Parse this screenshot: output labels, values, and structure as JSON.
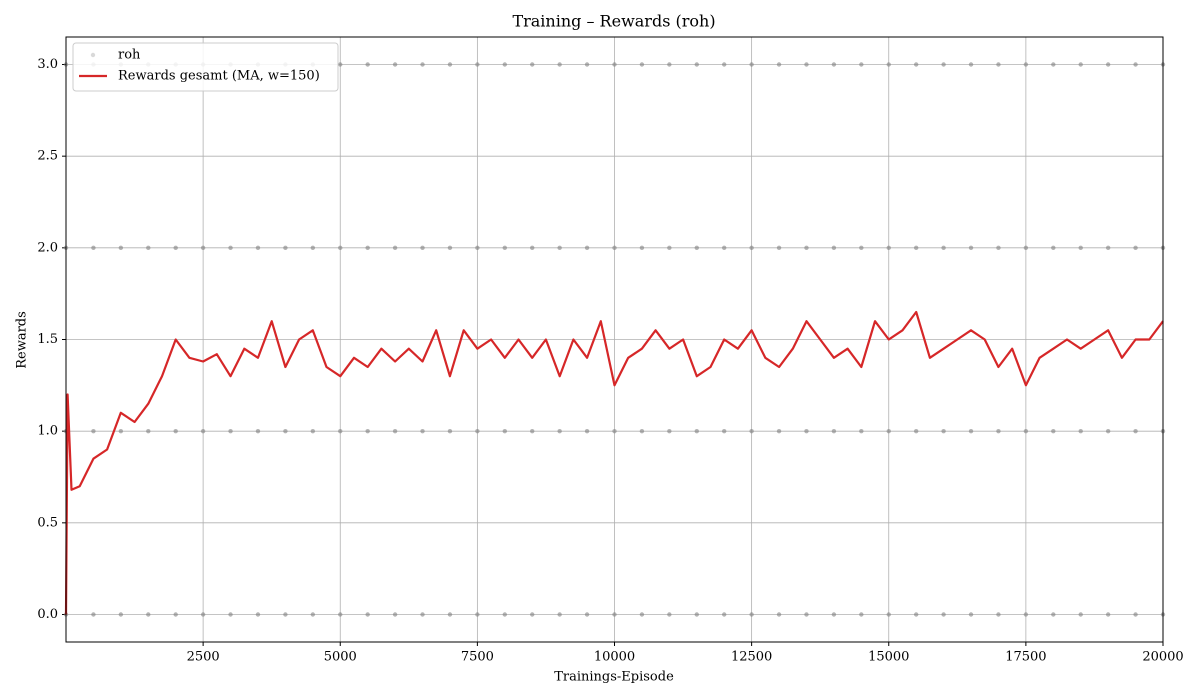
{
  "chart_data": {
    "type": "scatter_line",
    "title": "Training – Rewards (roh)",
    "xlabel": "Trainings-Episode",
    "ylabel": "Rewards",
    "xlim": [
      0,
      20000
    ],
    "ylim": [
      -0.15,
      3.15
    ],
    "xticks": [
      2500,
      5000,
      7500,
      10000,
      12500,
      15000,
      17500,
      20000
    ],
    "yticks": [
      {
        "value": 0,
        "label": "0.0"
      },
      0.5,
      {
        "value": 1,
        "label": "1.0"
      },
      1.5,
      {
        "value": 2,
        "label": "2.0"
      },
      2.5,
      {
        "value": 3,
        "label": "3.0"
      }
    ],
    "grid": true,
    "legend": "upper left",
    "series": [
      {
        "name": "roh",
        "color": "#808080",
        "kind": "scatter",
        "x": [
          0,
          500,
          1000,
          1500,
          2000,
          2500,
          3000,
          3500,
          4000,
          4500,
          5000,
          5500,
          6000,
          6500,
          7000,
          7500,
          8000,
          8500,
          9000,
          9500,
          10000,
          10500,
          11000,
          11500,
          12000,
          12500,
          13000,
          13500,
          14000,
          14500,
          15000,
          15500,
          16000,
          16500,
          17000,
          17500,
          18000,
          18500,
          19000,
          19500,
          20000,
          0,
          500,
          1000,
          1500,
          2000,
          2500,
          3000,
          3500,
          4000,
          4500,
          5000,
          5500,
          6000,
          6500,
          7000,
          7500,
          8000,
          8500,
          9000,
          9500,
          10000,
          10500,
          11000,
          11500,
          12000,
          12500,
          13000,
          13500,
          14000,
          14500,
          15000,
          15500,
          16000,
          16500,
          17000,
          17500,
          18000,
          18500,
          19000,
          19500,
          20000,
          0,
          500,
          1000,
          1500,
          2000,
          2500,
          3000,
          3500,
          4000,
          4500,
          5000,
          5500,
          6000,
          6500,
          7000,
          7500,
          8000,
          8500,
          9000,
          9500,
          10000,
          10500,
          11000,
          11500,
          12000,
          12500,
          13000,
          13500,
          14000,
          14500,
          15000,
          15500,
          16000,
          16500,
          17000,
          17500,
          18000,
          18500,
          19000,
          19500,
          20000,
          0,
          500,
          1000,
          1500,
          2000,
          2500,
          3000,
          3500,
          4000,
          4500,
          5000,
          5500,
          6000,
          6500,
          7000,
          7500,
          8000,
          8500,
          9000,
          9500,
          10000,
          10500,
          11000,
          11500,
          12000,
          12500,
          13000,
          13500,
          14000,
          14500,
          15000,
          15500,
          16000,
          16500,
          17000,
          17500,
          18000,
          18500,
          19000,
          19500,
          20000
        ],
        "values": [
          0,
          0,
          0,
          0,
          0,
          0,
          0,
          0,
          0,
          0,
          0,
          0,
          0,
          0,
          0,
          0,
          0,
          0,
          0,
          0,
          0,
          0,
          0,
          0,
          0,
          0,
          0,
          0,
          0,
          0,
          0,
          0,
          0,
          0,
          0,
          0,
          0,
          0,
          0,
          0,
          0,
          1,
          1,
          1,
          1,
          1,
          1,
          1,
          1,
          1,
          1,
          1,
          1,
          1,
          1,
          1,
          1,
          1,
          1,
          1,
          1,
          1,
          1,
          1,
          1,
          1,
          1,
          1,
          1,
          1,
          1,
          1,
          1,
          1,
          1,
          1,
          1,
          1,
          1,
          1,
          1,
          1,
          2,
          2,
          2,
          2,
          2,
          2,
          2,
          2,
          2,
          2,
          2,
          2,
          2,
          2,
          2,
          2,
          2,
          2,
          2,
          2,
          2,
          2,
          2,
          2,
          2,
          2,
          2,
          2,
          2,
          2,
          2,
          2,
          2,
          2,
          2,
          2,
          2,
          2,
          2,
          2,
          2,
          3,
          3,
          3,
          3,
          3,
          3,
          3,
          3,
          3,
          3,
          3,
          3,
          3,
          3,
          3,
          3,
          3,
          3,
          3,
          3,
          3,
          3,
          3,
          3,
          3,
          3,
          3,
          3,
          3,
          3,
          3,
          3,
          3,
          3,
          3,
          3,
          3,
          3,
          3,
          3,
          3
        ]
      },
      {
        "name": "Rewards gesamt (MA, w=150)",
        "color": "#d62728",
        "kind": "line",
        "x": [
          0,
          30,
          100,
          250,
          500,
          750,
          1000,
          1250,
          1500,
          1750,
          2000,
          2250,
          2500,
          2750,
          3000,
          3250,
          3500,
          3750,
          4000,
          4250,
          4500,
          4750,
          5000,
          5250,
          5500,
          5750,
          6000,
          6250,
          6500,
          6750,
          7000,
          7250,
          7500,
          7750,
          8000,
          8250,
          8500,
          8750,
          9000,
          9250,
          9500,
          9750,
          10000,
          10250,
          10500,
          10750,
          11000,
          11250,
          11500,
          11750,
          12000,
          12250,
          12500,
          12750,
          13000,
          13250,
          13500,
          13750,
          14000,
          14250,
          14500,
          14750,
          15000,
          15250,
          15500,
          15750,
          16000,
          16250,
          16500,
          16750,
          17000,
          17250,
          17500,
          17750,
          18000,
          18250,
          18500,
          18750,
          19000,
          19250,
          19500,
          19750,
          20000
        ],
        "values": [
          0,
          1.2,
          0.68,
          0.7,
          0.85,
          0.9,
          1.1,
          1.05,
          1.15,
          1.3,
          1.5,
          1.4,
          1.38,
          1.42,
          1.3,
          1.45,
          1.4,
          1.6,
          1.35,
          1.5,
          1.55,
          1.35,
          1.3,
          1.4,
          1.35,
          1.45,
          1.38,
          1.45,
          1.38,
          1.55,
          1.3,
          1.55,
          1.45,
          1.5,
          1.4,
          1.5,
          1.4,
          1.5,
          1.3,
          1.5,
          1.4,
          1.6,
          1.25,
          1.4,
          1.45,
          1.55,
          1.45,
          1.5,
          1.3,
          1.35,
          1.5,
          1.45,
          1.55,
          1.4,
          1.35,
          1.45,
          1.6,
          1.5,
          1.4,
          1.45,
          1.35,
          1.6,
          1.5,
          1.55,
          1.65,
          1.4,
          1.45,
          1.5,
          1.55,
          1.5,
          1.35,
          1.45,
          1.25,
          1.4,
          1.45,
          1.5,
          1.45,
          1.5,
          1.55,
          1.4,
          1.5,
          1.5,
          1.6
        ]
      }
    ]
  }
}
